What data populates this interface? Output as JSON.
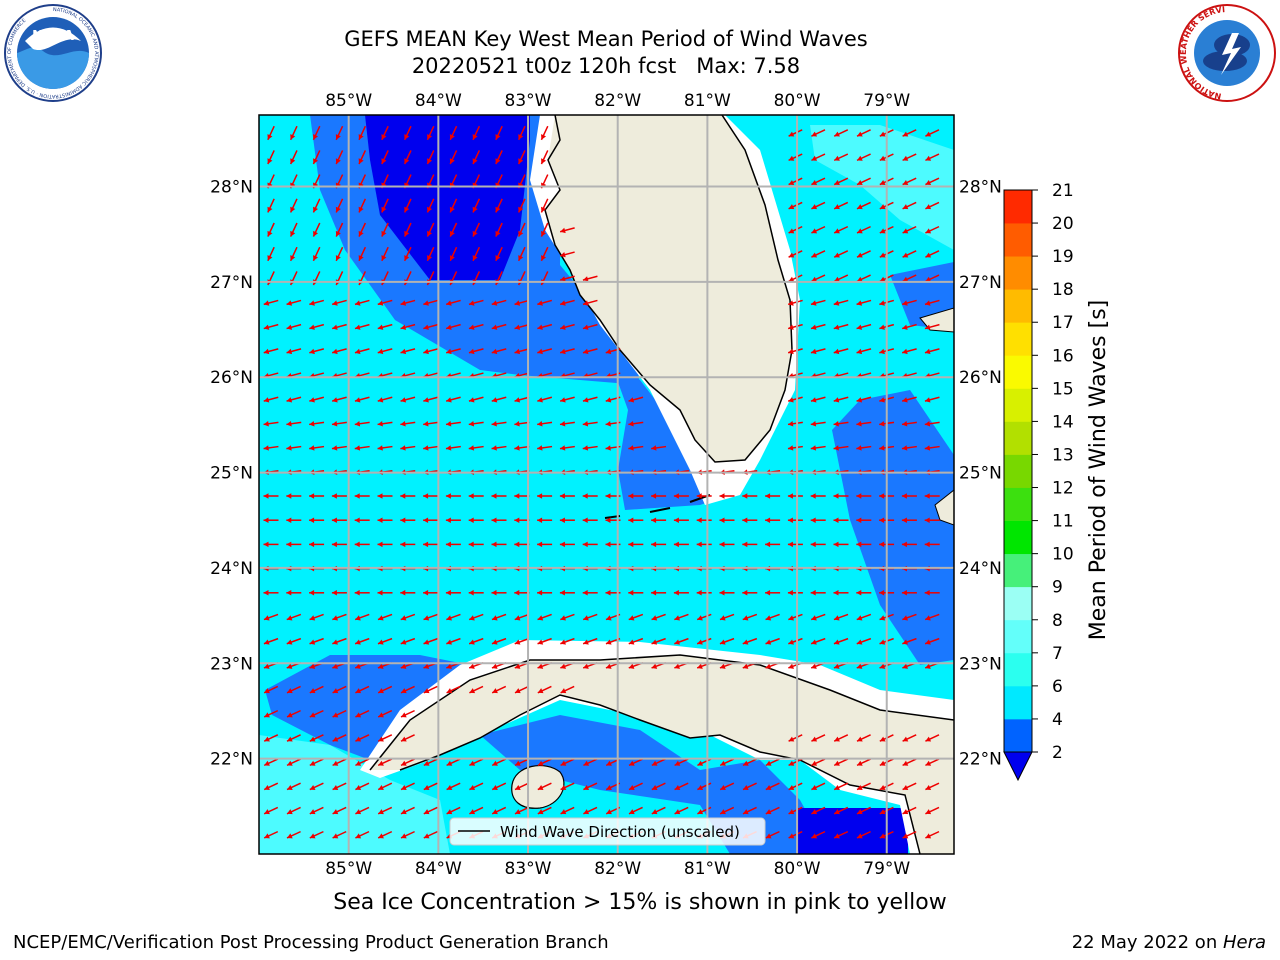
{
  "header": {
    "title_line1": "GEFS MEAN Key West Mean Period of Wind Waves",
    "title_line2": "20220521 t00z 120h fcst   Max: 7.58"
  },
  "logos": {
    "left": "NOAA",
    "left_ring_text": "NATIONAL OCEANIC AND ATMOSPHERIC ADMINISTRATION · U.S. DEPARTMENT OF COMMERCE",
    "right_ring_text": "NATIONAL WEATHER SERVICE"
  },
  "footer": {
    "sea_ice_note": "Sea Ice Concentration > 15% is shown in pink to yellow",
    "credit_left": "NCEP/EMC/Verification Post Processing Product Generation Branch",
    "credit_date": "22 May 2022 on ",
    "credit_host": "Hera"
  },
  "chart_data": {
    "type": "heatmap",
    "title": "GEFS MEAN Key West Mean Period of Wind Waves",
    "subtitle": "20220521 t00z 120h fcst   Max: 7.58",
    "max_value": 7.58,
    "lon_range": [
      -86.0,
      -78.25
    ],
    "lat_range": [
      21.0,
      28.75
    ],
    "lon_ticks": [
      -85,
      -84,
      -83,
      -82,
      -81,
      -80,
      -79
    ],
    "lon_tick_labels": [
      "85°W",
      "84°W",
      "83°W",
      "82°W",
      "81°W",
      "80°W",
      "79°W"
    ],
    "lat_ticks": [
      22,
      23,
      24,
      25,
      26,
      27,
      28
    ],
    "lat_tick_labels": [
      "22°N",
      "23°N",
      "24°N",
      "25°N",
      "26°N",
      "27°N",
      "28°N"
    ],
    "grid": true,
    "colorbar": {
      "label": "Mean Period of Wind Waves [s]",
      "levels": [
        2,
        4,
        6,
        7,
        8,
        9,
        10,
        11,
        12,
        13,
        14,
        15,
        16,
        17,
        18,
        19,
        20,
        21
      ],
      "tick_labels": [
        "2",
        "4",
        "6",
        "7",
        "8",
        "9",
        "10",
        "11",
        "12",
        "13",
        "14",
        "15",
        "16",
        "17",
        "18",
        "19",
        "20",
        "21"
      ],
      "colors": [
        "#0063ff",
        "#00e9ff",
        "#2bffef",
        "#63fffa",
        "#9bfff4",
        "#46f07a",
        "#00e600",
        "#3ce00f",
        "#78d800",
        "#b2e000",
        "#d8f000",
        "#fafa00",
        "#ffe000",
        "#ffbb00",
        "#ff8c00",
        "#ff5c00",
        "#ff2a00"
      ],
      "extend": "min",
      "under_color": "#0000ee"
    },
    "field_colors": {
      "land": "#eeecdc",
      "dark_blue": "#0000ee",
      "blue": "#1a78ff",
      "cyan": "#00f2ff",
      "light_cyan": "#4dfbff",
      "coast": "#000000",
      "arrow": "#ee0000"
    },
    "legend": {
      "label": "Wind Wave Direction (unscaled)",
      "position": "bottom-center"
    }
  }
}
